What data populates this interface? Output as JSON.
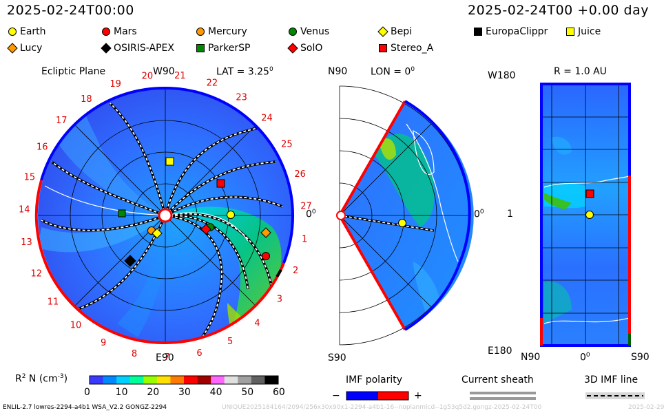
{
  "header": {
    "left_time": "2025-02-24T00:00",
    "right_time": "2025-02-24T00 +0.00 day"
  },
  "legend": [
    {
      "label": "Earth",
      "shape": "circle",
      "color": "#ffff00"
    },
    {
      "label": "Mars",
      "shape": "circle",
      "color": "#ff0000"
    },
    {
      "label": "Mercury",
      "shape": "circle",
      "color": "#ff9900"
    },
    {
      "label": "Venus",
      "shape": "circle",
      "color": "#008800"
    },
    {
      "label": "Bepi",
      "shape": "diamond",
      "color": "#ffff00"
    },
    {
      "label": "EuropaClippr",
      "shape": "square",
      "color": "#000000"
    },
    {
      "label": "Juice",
      "shape": "square",
      "color": "#ffff00"
    },
    {
      "label": "Lucy",
      "shape": "diamond",
      "color": "#ff9900"
    },
    {
      "label": "OSIRIS-APEX",
      "shape": "diamond",
      "color": "#000000"
    },
    {
      "label": "ParkerSP",
      "shape": "square",
      "color": "#008800"
    },
    {
      "label": "SolO",
      "shape": "diamond",
      "color": "#ff0000"
    },
    {
      "label": "Stereo_A",
      "shape": "square",
      "color": "#ff0000"
    }
  ],
  "ecliptic": {
    "title": "Ecliptic Plane",
    "lat_label": "LAT = 3.25",
    "lat_sup": "0",
    "top_label": "W90",
    "bottom_label": "E90",
    "right_label": "0",
    "right_sup": "0",
    "carrington_numbers": [
      "1",
      "2",
      "3",
      "4",
      "5",
      "6",
      "7",
      "8",
      "9",
      "10",
      "11",
      "12",
      "13",
      "14",
      "15",
      "16",
      "17",
      "18",
      "19",
      "20",
      "21",
      "22",
      "23",
      "24",
      "25",
      "26",
      "27"
    ]
  },
  "meridional": {
    "top_left_label": "N90",
    "lon_label": "LON = 0",
    "lon_sup": "0",
    "bottom_label": "S90",
    "right_label": "0",
    "right_sup": "0"
  },
  "radial": {
    "title": "R = 1.0 AU",
    "top_label": "W180",
    "bottom_label": "E180",
    "left_mid_label": "1",
    "n_label": "N90",
    "zero_label": "0",
    "zero_sup": "0",
    "s_label": "S90"
  },
  "colorbar": {
    "title_prefix": "R",
    "title_sup": "2",
    "title_mid": " N (cm",
    "title_sup2": "-3",
    "title_suffix": ")",
    "ticks": [
      "0",
      "10",
      "20",
      "30",
      "40",
      "50",
      "60"
    ],
    "colors": [
      "#3a3aff",
      "#0088ff",
      "#00d0ff",
      "#00ff99",
      "#99ff00",
      "#ffe000",
      "#ff7a00",
      "#ff0000",
      "#a00000",
      "#ff66ff",
      "#e0e0e0",
      "#a0a0a0",
      "#606060",
      "#000000"
    ]
  },
  "imf": {
    "label": "IMF polarity",
    "minus": "−",
    "plus": "+",
    "neg_color": "#0000ff",
    "pos_color": "#ff0000"
  },
  "current_sheath": {
    "label": "Current sheath"
  },
  "imf_line": {
    "label": "3D IMF line"
  },
  "footer": {
    "left": "ENLIL-2.7 lowres-2294-a4b1 WSA_V2.2 GONGZ-2294",
    "right": "UNIQUE2025184164/2094/256x30x90x1-2294-a4b1-16--noplanmlcd--1g53q5d2.gongz-2025-02-24T00",
    "right2": "2025-02-29"
  },
  "colors": {
    "disk_base": "#2f5fff",
    "band_green": "#00c878",
    "polarity_pos": "#ff0000",
    "polarity_neg": "#0000ff",
    "carrington_text": "#e00000"
  }
}
